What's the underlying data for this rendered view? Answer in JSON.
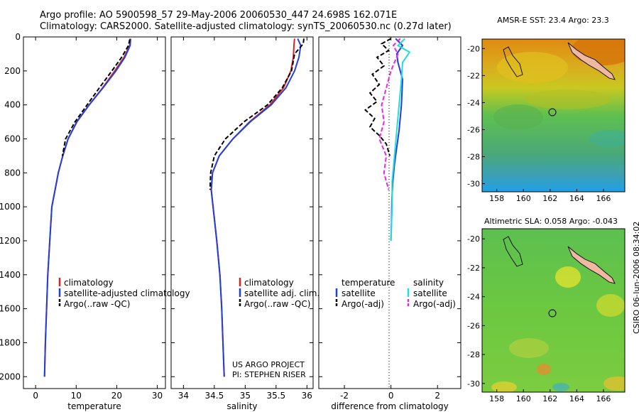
{
  "title": {
    "line1": "Argo profile: AO 5900598_57 29-May-2006 20060530_447 24.698S 162.071E",
    "line2": "Climatology: CARS2000. Satellite-adjusted climatology: synTS_20060530.nc (0.27d later)"
  },
  "side_label": "CSIRO 06-Jun-2006 08:34:02",
  "colors": {
    "red": "#dd2222",
    "blue": "#1f3fe0",
    "black": "#000000",
    "cyan": "#22dddd",
    "magenta": "#ee22ee",
    "coast": "#f0b8a0"
  },
  "chart_data": [
    {
      "id": "temperature",
      "type": "line",
      "xlabel": "temperature",
      "ylabel": "",
      "xlim": [
        -3,
        32
      ],
      "ylim": [
        2070,
        0
      ],
      "xticks": [
        "0",
        "10",
        "20",
        "30"
      ],
      "xtick_values": [
        0,
        10,
        20,
        30
      ],
      "yticks": [
        "0",
        "200",
        "400",
        "600",
        "800",
        "1000",
        "1200",
        "1400",
        "1600",
        "1800",
        "2000"
      ],
      "ytick_values": [
        0,
        200,
        400,
        600,
        800,
        1000,
        1200,
        1400,
        1600,
        1800,
        2000
      ],
      "legend": [
        "climatology",
        "satellite-adjusted climatology",
        "Argo(..raw -QC)"
      ],
      "series": [
        {
          "name": "climatology",
          "color": "red",
          "dash": false,
          "x": [
            23.3,
            23.2,
            21.8,
            19.5,
            16.5,
            13.2,
            10.2,
            8.0,
            6.7,
            5.6,
            4.8,
            4.0,
            3.5,
            3.0,
            2.7,
            2.4,
            2.2
          ],
          "y": [
            10,
            50,
            120,
            200,
            300,
            400,
            500,
            600,
            700,
            800,
            900,
            1000,
            1200,
            1400,
            1600,
            1800,
            2000
          ]
        },
        {
          "name": "satellite-adjusted climatology",
          "color": "blue",
          "dash": false,
          "x": [
            23.4,
            23.3,
            22.0,
            19.8,
            16.6,
            13.2,
            10.1,
            8.0,
            6.7,
            5.6,
            4.8,
            4.0,
            3.5,
            3.0,
            2.7,
            2.4,
            2.2
          ],
          "y": [
            10,
            50,
            120,
            200,
            300,
            400,
            500,
            600,
            700,
            800,
            900,
            1000,
            1200,
            1400,
            1600,
            1800,
            2000
          ]
        },
        {
          "name": "Argo(..raw -QC)",
          "color": "black",
          "dash": true,
          "x": [
            23.2,
            22.9,
            21.2,
            18.8,
            15.7,
            12.7,
            9.7,
            7.4,
            6.6
          ],
          "y": [
            15,
            50,
            120,
            200,
            300,
            400,
            500,
            600,
            700
          ]
        }
      ]
    },
    {
      "id": "salinity",
      "type": "line",
      "xlabel": "salinity",
      "ylabel": "",
      "xlim": [
        33.8,
        36.1
      ],
      "ylim": [
        2070,
        0
      ],
      "xticks": [
        "34",
        "34.5",
        "35",
        "35.5",
        "36"
      ],
      "xtick_values": [
        34,
        34.5,
        35,
        35.5,
        36
      ],
      "legend": [
        "climatology",
        "satellite adj. clim.",
        "Argo(..raw -QC)"
      ],
      "annotation": [
        "US ARGO PROJECT",
        "PI: STEPHEN RISER"
      ],
      "series": [
        {
          "name": "climatology",
          "color": "red",
          "dash": false,
          "x": [
            35.8,
            35.79,
            35.78,
            35.74,
            35.62,
            35.4,
            35.07,
            34.8,
            34.58,
            34.47,
            34.45,
            34.48,
            34.54,
            34.59,
            34.62,
            34.64,
            34.66
          ],
          "y": [
            10,
            50,
            120,
            200,
            300,
            400,
            500,
            600,
            700,
            800,
            900,
            1000,
            1200,
            1400,
            1600,
            1800,
            2000
          ]
        },
        {
          "name": "satellite adj. clim.",
          "color": "blue",
          "dash": false,
          "x": [
            35.85,
            35.9,
            35.87,
            35.8,
            35.66,
            35.42,
            35.08,
            34.8,
            34.58,
            34.47,
            34.45,
            34.48,
            34.54,
            34.59,
            34.62,
            34.64,
            34.66
          ],
          "y": [
            10,
            50,
            120,
            200,
            300,
            400,
            500,
            600,
            700,
            800,
            900,
            1000,
            1200,
            1400,
            1600,
            1800,
            2000
          ]
        },
        {
          "name": "Argo(..raw -QC)",
          "color": "black",
          "dash": true,
          "x": [
            35.95,
            35.94,
            35.8,
            35.75,
            35.6,
            35.36,
            34.98,
            34.68,
            34.5,
            34.44,
            34.43
          ],
          "y": [
            10,
            40,
            100,
            200,
            300,
            400,
            500,
            600,
            700,
            800,
            900
          ]
        }
      ]
    },
    {
      "id": "difference",
      "type": "line",
      "xlabel": "difference from climatology",
      "ylabel": "",
      "xlim": [
        -3.1,
        3.0
      ],
      "ylim": [
        2070,
        0
      ],
      "xticks": [
        "-2",
        "0",
        "2"
      ],
      "xtick_values": [
        -2,
        0,
        2
      ],
      "legend_groups": [
        "temperature",
        "salinity"
      ],
      "legend": [
        "satellite",
        "Argo(-adj)",
        "satellite",
        "Argo(-adj)"
      ],
      "series": [
        {
          "name": "temperature satellite",
          "color": "blue",
          "dash": false,
          "x": [
            0.2,
            0.5,
            0.25,
            0.3,
            0.5,
            0.45,
            0.35,
            0.25,
            0.15,
            0.08,
            0.04,
            0.02,
            0.0
          ],
          "y": [
            10,
            50,
            100,
            150,
            250,
            400,
            550,
            650,
            750,
            850,
            950,
            1100,
            1200
          ]
        },
        {
          "name": "temperature Argo(-adj)",
          "color": "black",
          "dash": true,
          "x": [
            0.0,
            -0.4,
            -0.1,
            -0.6,
            -0.3,
            -0.8,
            -0.5,
            -0.9,
            -0.6,
            -1.1,
            -0.7,
            -0.9,
            -0.5,
            -0.2,
            -0.05
          ],
          "y": [
            10,
            40,
            80,
            120,
            170,
            220,
            280,
            330,
            380,
            430,
            480,
            530,
            580,
            630,
            700
          ]
        },
        {
          "name": "salinity satellite",
          "color": "cyan",
          "dash": false,
          "x": [
            0.6,
            0.3,
            0.8,
            0.5,
            0.45,
            0.35,
            0.25,
            0.15,
            0.05,
            0.05,
            0.0
          ],
          "y": [
            10,
            50,
            90,
            150,
            250,
            400,
            550,
            700,
            850,
            1000,
            1200
          ]
        },
        {
          "name": "salinity Argo(-adj)",
          "color": "magenta",
          "dash": true,
          "x": [
            0.4,
            0.1,
            0.3,
            0.0,
            -0.2,
            -0.4,
            -0.3,
            -0.5,
            -0.2,
            -0.3,
            -0.1
          ],
          "y": [
            10,
            50,
            100,
            200,
            300,
            400,
            500,
            600,
            700,
            800,
            900
          ]
        }
      ]
    },
    {
      "id": "sst_map",
      "type": "heatmap",
      "title": "AMSR-E SST: 23.4 Argo: 23.3",
      "xticks": [
        "158",
        "160",
        "162",
        "164",
        "166"
      ],
      "xtick_values": [
        158,
        160,
        162,
        164,
        166
      ],
      "yticks": [
        "-20",
        "-22",
        "-24",
        "-26",
        "-28",
        "-30"
      ],
      "ytick_values": [
        -20,
        -22,
        -24,
        -26,
        -28,
        -30
      ],
      "xlim": [
        156.9,
        167.6
      ],
      "ylim": [
        -30.6,
        -19.3
      ],
      "marker": {
        "lon": 162.07,
        "lat": -24.7
      }
    },
    {
      "id": "sla_map",
      "type": "heatmap",
      "title": "Altimetric SLA: 0.058 Argo: -0.043",
      "xticks": [
        "158",
        "160",
        "162",
        "164",
        "166"
      ],
      "xtick_values": [
        158,
        160,
        162,
        164,
        166
      ],
      "yticks": [
        "-20",
        "-22",
        "-24",
        "-26",
        "-28",
        "-30"
      ],
      "ytick_values": [
        -20,
        -22,
        -24,
        -26,
        -28,
        -30
      ],
      "xlim": [
        156.9,
        167.6
      ],
      "ylim": [
        -30.6,
        -19.3
      ],
      "marker": {
        "lon": 162.07,
        "lat": -24.7
      }
    }
  ]
}
